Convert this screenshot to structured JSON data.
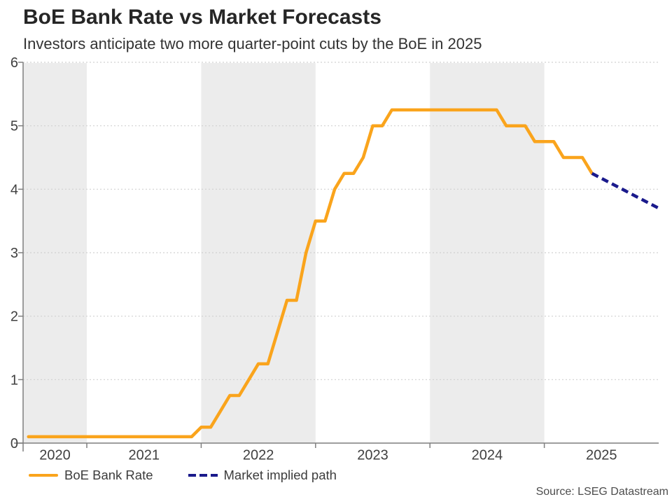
{
  "header": {
    "title": "BoE Bank Rate vs Market Forecasts",
    "subtitle": "Investors anticipate two more quarter-point cuts by the BoE in 2025"
  },
  "legend": {
    "items": [
      {
        "label": "BoE Bank Rate",
        "style": "solid",
        "color": "#FAA41C"
      },
      {
        "label": "Market implied path",
        "style": "dashed",
        "color": "#1A1A8C"
      }
    ]
  },
  "source_note": "Source: LSEG Datastream",
  "chart_data": {
    "type": "line",
    "title": "BoE Bank Rate vs Market Forecasts",
    "subtitle": "Investors anticipate two more quarter-point cuts by the BoE in 2025",
    "xlabel": "",
    "ylabel": "",
    "xlim": [
      2020.443,
      2026.0
    ],
    "ylim": [
      0,
      6
    ],
    "yticks": [
      0,
      1,
      2,
      3,
      4,
      5,
      6
    ],
    "xticks": [
      2021,
      2022,
      2023,
      2024,
      2025
    ],
    "year_labels": [
      2020,
      2021,
      2022,
      2023,
      2024,
      2025
    ],
    "shaded_years": [
      2020,
      2022,
      2024
    ],
    "grid": "horizontal-dotted",
    "legend_position": "bottom-left",
    "colors": {
      "band": "#ECECEC",
      "grid": "#D0D0D0",
      "axis": "#7F7F7F",
      "tick_text": "#404040"
    },
    "series": [
      {
        "name": "BoE Bank Rate",
        "color": "#FAA41C",
        "dash": null,
        "width": 4.5,
        "points": [
          [
            2020.49,
            0.1
          ],
          [
            2021.917,
            0.1
          ],
          [
            2022.0,
            0.25
          ],
          [
            2022.083,
            0.25
          ],
          [
            2022.167,
            0.5
          ],
          [
            2022.25,
            0.75
          ],
          [
            2022.333,
            0.75
          ],
          [
            2022.417,
            1.0
          ],
          [
            2022.5,
            1.25
          ],
          [
            2022.583,
            1.25
          ],
          [
            2022.667,
            1.75
          ],
          [
            2022.75,
            2.25
          ],
          [
            2022.833,
            2.25
          ],
          [
            2022.917,
            3.0
          ],
          [
            2023.0,
            3.5
          ],
          [
            2023.083,
            3.5
          ],
          [
            2023.167,
            4.0
          ],
          [
            2023.25,
            4.25
          ],
          [
            2023.333,
            4.25
          ],
          [
            2023.417,
            4.5
          ],
          [
            2023.5,
            5.0
          ],
          [
            2023.583,
            5.0
          ],
          [
            2023.667,
            5.25
          ],
          [
            2024.583,
            5.25
          ],
          [
            2024.667,
            5.0
          ],
          [
            2024.833,
            5.0
          ],
          [
            2024.917,
            4.75
          ],
          [
            2025.083,
            4.75
          ],
          [
            2025.167,
            4.5
          ],
          [
            2025.333,
            4.5
          ],
          [
            2025.417,
            4.25
          ]
        ]
      },
      {
        "name": "Market implied path",
        "color": "#1A1A8C",
        "dash": [
          10,
          6
        ],
        "width": 4.5,
        "points": [
          [
            2025.417,
            4.25
          ],
          [
            2026.0,
            3.7
          ]
        ]
      }
    ]
  }
}
